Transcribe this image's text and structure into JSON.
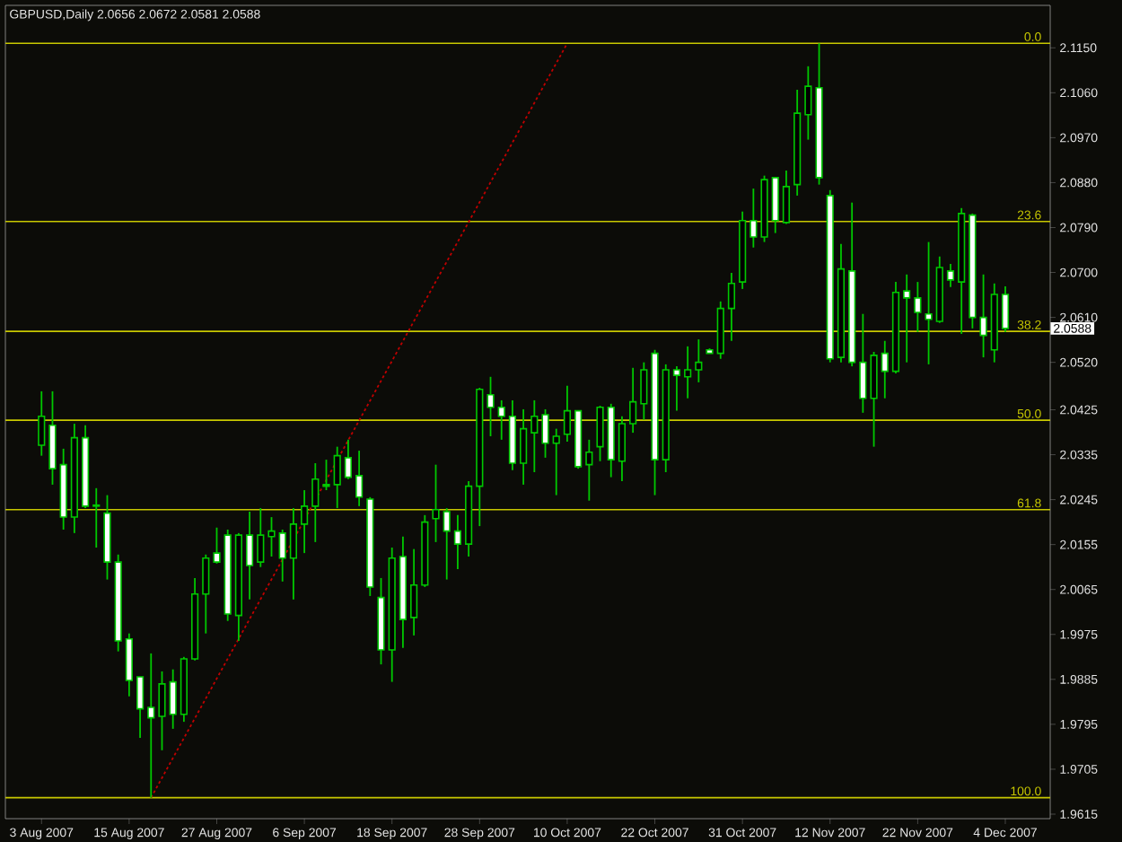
{
  "chart_data": {
    "type": "candlestick",
    "title": "GBPUSD,Daily  2.0656 2.0672 2.0581 2.0588",
    "categories": [
      "3 Aug 2007",
      null,
      null,
      null,
      null,
      null,
      null,
      null,
      "15 Aug 2007",
      null,
      null,
      null,
      null,
      null,
      null,
      null,
      "27 Aug 2007",
      null,
      null,
      null,
      null,
      null,
      null,
      null,
      "6 Sep 2007",
      null,
      null,
      null,
      null,
      null,
      null,
      null,
      "18 Sep 2007",
      null,
      null,
      null,
      null,
      null,
      null,
      null,
      "28 Sep 2007",
      null,
      null,
      null,
      null,
      null,
      null,
      null,
      "10 Oct 2007",
      null,
      null,
      null,
      null,
      null,
      null,
      null,
      "22 Oct 2007",
      null,
      null,
      null,
      null,
      null,
      null,
      null,
      "31 Oct 2007",
      null,
      null,
      null,
      null,
      null,
      null,
      null,
      "12 Nov 2007",
      null,
      null,
      null,
      null,
      null,
      null,
      null,
      "22 Nov 2007",
      null,
      null,
      null,
      null,
      null,
      null,
      null,
      "4 Dec 2007"
    ],
    "color": "#00c800",
    "ohlc": [
      [
        2.0354,
        2.0462,
        2.0333,
        2.0412
      ],
      [
        2.0394,
        2.0462,
        2.0275,
        2.0307
      ],
      [
        2.0315,
        2.0347,
        2.0185,
        2.021
      ],
      [
        2.021,
        2.0397,
        2.0178,
        2.0369
      ],
      [
        2.0369,
        2.0394,
        2.0228,
        2.0232
      ],
      [
        2.0234,
        2.0268,
        2.0149,
        2.0232
      ],
      [
        2.0218,
        2.0254,
        2.0085,
        2.012
      ],
      [
        2.012,
        2.0135,
        1.9941,
        1.9962
      ],
      [
        1.9966,
        1.9977,
        1.9851,
        1.9883
      ],
      [
        1.989,
        1.989,
        1.9768,
        1.9826
      ],
      [
        1.9829,
        1.9937,
        1.9648,
        1.9808
      ],
      [
        1.9811,
        1.9901,
        1.9743,
        1.9876
      ],
      [
        1.988,
        1.9905,
        1.9786,
        1.9815
      ],
      [
        1.9815,
        1.993,
        1.98,
        1.9926
      ],
      [
        1.9926,
        2.0088,
        1.9923,
        2.0056
      ],
      [
        2.0056,
        2.0135,
        1.9977,
        2.0128
      ],
      [
        2.0138,
        2.0189,
        2.0117,
        2.012
      ],
      [
        2.0174,
        2.0185,
        2.0002,
        2.0016
      ],
      [
        2.0013,
        2.0178,
        1.9962,
        2.0174
      ],
      [
        2.0174,
        2.0221,
        2.0045,
        2.0113
      ],
      [
        2.012,
        2.0228,
        2.011,
        2.0174
      ],
      [
        2.0171,
        2.021,
        2.0131,
        2.0182
      ],
      [
        2.0178,
        2.0185,
        2.0081,
        2.0128
      ],
      [
        2.0128,
        2.0228,
        2.0045,
        2.0196
      ],
      [
        2.0196,
        2.0264,
        2.0138,
        2.0232
      ],
      [
        2.0232,
        2.0318,
        2.016,
        2.0286
      ],
      [
        2.0272,
        2.0325,
        2.0264,
        2.0275
      ],
      [
        2.0275,
        2.0351,
        2.0228,
        2.0333
      ],
      [
        2.0329,
        2.0365,
        2.0286,
        2.029
      ],
      [
        2.0293,
        2.0343,
        2.0232,
        2.025
      ],
      [
        2.0246,
        2.025,
        2.0052,
        2.007
      ],
      [
        2.0049,
        2.0088,
        1.9915,
        1.9944
      ],
      [
        1.9944,
        2.0149,
        1.988,
        2.0128
      ],
      [
        2.0131,
        2.0171,
        1.9948,
        2.0005
      ],
      [
        2.0009,
        2.0146,
        1.9973,
        2.0074
      ],
      [
        2.0074,
        2.0214,
        2.007,
        2.02
      ],
      [
        2.0207,
        2.0315,
        2.016,
        2.0225
      ],
      [
        2.0221,
        2.0228,
        2.0085,
        2.0182
      ],
      [
        2.0182,
        2.0214,
        2.0106,
        2.0156
      ],
      [
        2.0156,
        2.0282,
        2.0131,
        2.0272
      ],
      [
        2.0272,
        2.0469,
        2.0192,
        2.0466
      ],
      [
        2.0455,
        2.0491,
        2.0372,
        2.043
      ],
      [
        2.043,
        2.0444,
        2.0365,
        2.0412
      ],
      [
        2.0412,
        2.0444,
        2.0304,
        2.0318
      ],
      [
        2.0318,
        2.0426,
        2.0275,
        2.0387
      ],
      [
        2.0379,
        2.0444,
        2.03,
        2.0412
      ],
      [
        2.0415,
        2.0426,
        2.0329,
        2.0358
      ],
      [
        2.0358,
        2.0387,
        2.0254,
        2.0372
      ],
      [
        2.0376,
        2.0473,
        2.0361,
        2.0423
      ],
      [
        2.0423,
        2.0423,
        2.0307,
        2.0311
      ],
      [
        2.0315,
        2.0365,
        2.0243,
        2.034
      ],
      [
        2.0351,
        2.0433,
        2.0322,
        2.043
      ],
      [
        2.043,
        2.0437,
        2.029,
        2.0325
      ],
      [
        2.0322,
        2.0412,
        2.0282,
        2.0397
      ],
      [
        2.0397,
        2.0509,
        2.0379,
        2.0441
      ],
      [
        2.0437,
        2.052,
        2.0405,
        2.0505
      ],
      [
        2.0538,
        2.0545,
        2.0254,
        2.0325
      ],
      [
        2.0325,
        2.0516,
        2.03,
        2.0505
      ],
      [
        2.0505,
        2.0512,
        2.0423,
        2.0494
      ],
      [
        2.0491,
        2.0552,
        2.0448,
        2.0505
      ],
      [
        2.0505,
        2.0566,
        2.048,
        2.052
      ],
      [
        2.0545,
        2.0548,
        2.0538,
        2.0538
      ],
      [
        2.0538,
        2.0642,
        2.0527,
        2.0628
      ],
      [
        2.0628,
        2.0699,
        2.0563,
        2.0678
      ],
      [
        2.0681,
        2.0822,
        2.0667,
        2.0804
      ],
      [
        2.0804,
        2.0868,
        2.075,
        2.0771
      ],
      [
        2.0771,
        2.0894,
        2.0761,
        2.0886
      ],
      [
        2.089,
        2.089,
        2.0779,
        2.0804
      ],
      [
        2.08,
        2.0904,
        2.0797,
        2.0872
      ],
      [
        2.0876,
        2.1066,
        2.0854,
        2.1019
      ],
      [
        2.1016,
        2.1113,
        2.0966,
        2.1073
      ],
      [
        2.107,
        2.1159,
        2.0876,
        2.089
      ],
      [
        2.0854,
        2.0865,
        2.052,
        2.0527
      ],
      [
        2.053,
        2.0757,
        2.052,
        2.0707
      ],
      [
        2.0703,
        2.084,
        2.0512,
        2.052
      ],
      [
        2.052,
        2.0617,
        2.0419,
        2.0448
      ],
      [
        2.0448,
        2.0541,
        2.0351,
        2.0534
      ],
      [
        2.0538,
        2.0563,
        2.0448,
        2.0502
      ],
      [
        2.0502,
        2.0681,
        2.0498,
        2.066
      ],
      [
        2.0663,
        2.0696,
        2.052,
        2.0649
      ],
      [
        2.0649,
        2.0681,
        2.0581,
        2.062
      ],
      [
        2.0617,
        2.0761,
        2.0516,
        2.0606
      ],
      [
        2.0602,
        2.0732,
        2.0599,
        2.071
      ],
      [
        2.0703,
        2.0717,
        2.0671,
        2.0685
      ],
      [
        2.0681,
        2.0829,
        2.0577,
        2.0818
      ],
      [
        2.0815,
        2.0818,
        2.0588,
        2.061
      ],
      [
        2.061,
        2.0696,
        2.053,
        2.0574
      ],
      [
        2.0545,
        2.0678,
        2.052,
        2.0656
      ],
      [
        2.0656,
        2.0672,
        2.0581,
        2.0588
      ]
    ],
    "series": [
      {
        "type": "line",
        "color": "#c00000",
        "line_style": "dotted",
        "values": [
          null,
          null,
          null,
          null,
          null,
          null,
          null,
          null,
          null,
          null,
          1.9648,
          null,
          null,
          null,
          null,
          null,
          null,
          null,
          null,
          null,
          null,
          null,
          null,
          null,
          null,
          null,
          null,
          null,
          null,
          null,
          null,
          null,
          null,
          null,
          null,
          null,
          null,
          null,
          null,
          null,
          null,
          null,
          null,
          null,
          null,
          null,
          null,
          null,
          2.1159,
          null,
          null,
          null,
          null,
          null,
          null,
          null,
          null,
          null,
          null,
          null,
          null,
          null,
          null,
          null,
          null,
          null,
          null,
          null,
          null,
          null,
          null,
          null,
          null,
          null,
          null,
          null,
          null,
          null,
          null,
          null,
          null,
          null,
          null,
          null,
          null,
          null,
          null,
          null,
          null
        ]
      }
    ],
    "ylim": [
      1.9606,
      2.1235
    ],
    "yticks": [
      {
        "value": 2.115,
        "label": "2.1150"
      },
      {
        "value": 2.106,
        "label": "2.1060"
      },
      {
        "value": 2.097,
        "label": "2.0970"
      },
      {
        "value": 2.088,
        "label": "2.0880"
      },
      {
        "value": 2.079,
        "label": "2.0790"
      },
      {
        "value": 2.07,
        "label": "2.0700"
      },
      {
        "value": 2.061,
        "label": "2.0610"
      },
      {
        "value": 2.052,
        "label": "2.0520"
      },
      {
        "value": 2.0425,
        "label": "2.0425"
      },
      {
        "value": 2.0335,
        "label": "2.0335"
      },
      {
        "value": 2.0245,
        "label": "2.0245"
      },
      {
        "value": 2.0155,
        "label": "2.0155"
      },
      {
        "value": 2.0065,
        "label": "2.0065"
      },
      {
        "value": 1.9975,
        "label": "1.9975"
      },
      {
        "value": 1.9885,
        "label": "1.9885"
      },
      {
        "value": 1.9795,
        "label": "1.9795"
      },
      {
        "value": 1.9705,
        "label": "1.9705"
      },
      {
        "value": 1.9615,
        "label": "1.9615"
      }
    ],
    "ref_lines": [
      {
        "axis": "y",
        "value": 2.1159,
        "color": "#c8c800"
      },
      {
        "axis": "y",
        "value": 2.0802,
        "color": "#c8c800"
      },
      {
        "axis": "y",
        "value": 2.0582,
        "color": "#c8c800"
      },
      {
        "axis": "y",
        "value": 2.0404,
        "color": "#c8c800"
      },
      {
        "axis": "y",
        "value": 2.0225,
        "color": "#c8c800"
      },
      {
        "axis": "y",
        "value": 1.9648,
        "color": "#c8c800"
      }
    ],
    "annotations": [
      "2.0588",
      {
        "text": "0.0",
        "y": 2.1159
      },
      {
        "text": "23.6",
        "y": 2.0802
      },
      {
        "text": "38.2",
        "y": 2.0582
      },
      {
        "text": "50.0",
        "y": 2.0404
      },
      {
        "text": "61.8",
        "y": 2.0225
      },
      {
        "text": "100.0",
        "y": 1.9648
      }
    ]
  }
}
